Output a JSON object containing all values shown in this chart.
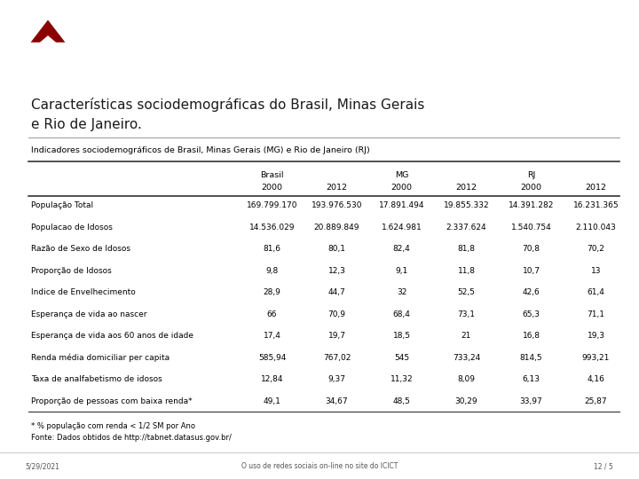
{
  "title_line1": "Características sociodemográficas do Brasil, Minas Gerais",
  "title_line2": "e Rio de Janeiro.",
  "table_title": "Indicadores sociodemográficos de Brasil, Minas Gerais (MG) e Rio de Janeiro (RJ)",
  "col_groups": [
    "Brasil",
    "MG",
    "RJ"
  ],
  "col_years": [
    "2000",
    "2012",
    "2000",
    "2012",
    "2000",
    "2012"
  ],
  "row_labels": [
    "População Total",
    "Populacao de Idosos",
    "Razão de Sexo de Idosos",
    "Proporção de Idosos",
    "Indice de Envelhecimento",
    "Esperança de vida ao nascer",
    "Esperança de vida aos 60 anos de idade",
    "Renda média domiciliar per capita",
    "Taxa de analfabetismo de idosos",
    "Proporção de pessoas com baixa renda*"
  ],
  "table_data": [
    [
      "169.799.170",
      "193.976.530",
      "17.891.494",
      "19.855.332",
      "14.391.282",
      "16.231.365"
    ],
    [
      "14.536.029",
      "20.889.849",
      "1.624.981",
      "2.337.624",
      "1.540.754",
      "2.110.043"
    ],
    [
      "81,6",
      "80,1",
      "82,4",
      "81,8",
      "70,8",
      "70,2"
    ],
    [
      "9,8",
      "12,3",
      "9,1",
      "11,8",
      "10,7",
      "13"
    ],
    [
      "28,9",
      "44,7",
      "32",
      "52,5",
      "42,6",
      "61,4"
    ],
    [
      "66",
      "70,9",
      "68,4",
      "73,1",
      "65,3",
      "71,1"
    ],
    [
      "17,4",
      "19,7",
      "18,5",
      "21",
      "16,8",
      "19,3"
    ],
    [
      "585,94",
      "767,02",
      "545",
      "733,24",
      "814,5",
      "993,21"
    ],
    [
      "12,84",
      "9,37",
      "11,32",
      "8,09",
      "6,13",
      "4,16"
    ],
    [
      "49,1",
      "34,67",
      "48,5",
      "30,29",
      "33,97",
      "25,87"
    ]
  ],
  "footnote1": "* % população com renda < 1/2 SM por Ano",
  "footnote2": "Fonte: Dados obtidos de http://tabnet.datasus.gov.br/",
  "footer_left": "5/29/2021",
  "footer_center": "O uso de redes sociais on-line no site do ICICT",
  "footer_right": "12 / 5",
  "header_bg_color": "#8B0000",
  "bg_color": "#FFFFFF",
  "text_color": "#000000",
  "title_color": "#1a1a1a"
}
